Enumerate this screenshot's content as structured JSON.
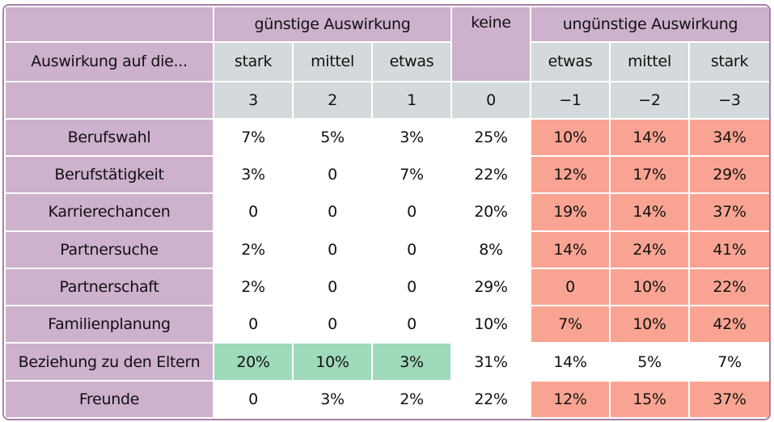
{
  "header": {
    "group_positive": "günstige Auswirkung",
    "group_none": "keine",
    "group_negative": "ungünstige Auswirkung",
    "row_label": "Auswirkung auf die...",
    "levels": [
      "stark",
      "mittel",
      "etwas",
      "etwas",
      "mittel",
      "stark"
    ],
    "scores": [
      "3",
      "2",
      "1",
      "0",
      "−1",
      "−2",
      "−3"
    ]
  },
  "rows": [
    {
      "label": "Berufswahl",
      "values": [
        "7%",
        "5%",
        "3%",
        "25%",
        "10%",
        "14%",
        "34%"
      ],
      "highlights": [
        "white",
        "white",
        "white",
        "white",
        "red",
        "red",
        "red"
      ]
    },
    {
      "label": "Berufstätigkeit",
      "values": [
        "3%",
        "0",
        "7%",
        "22%",
        "12%",
        "17%",
        "29%"
      ],
      "highlights": [
        "white",
        "white",
        "white",
        "white",
        "red",
        "red",
        "red"
      ]
    },
    {
      "label": "Karrierechancen",
      "values": [
        "0",
        "0",
        "0",
        "20%",
        "19%",
        "14%",
        "37%"
      ],
      "highlights": [
        "white",
        "white",
        "white",
        "white",
        "red",
        "red",
        "red"
      ]
    },
    {
      "label": "Partnersuche",
      "values": [
        "2%",
        "0",
        "0",
        "8%",
        "14%",
        "24%",
        "41%"
      ],
      "highlights": [
        "white",
        "white",
        "white",
        "white",
        "red",
        "red",
        "red"
      ]
    },
    {
      "label": "Partnerschaft",
      "values": [
        "2%",
        "0",
        "0",
        "29%",
        "0",
        "10%",
        "22%"
      ],
      "highlights": [
        "white",
        "white",
        "white",
        "white",
        "red",
        "red",
        "red"
      ]
    },
    {
      "label": "Familienplanung",
      "values": [
        "0",
        "0",
        "0",
        "10%",
        "7%",
        "10%",
        "42%"
      ],
      "highlights": [
        "white",
        "white",
        "white",
        "white",
        "red",
        "red",
        "red"
      ]
    },
    {
      "label": "Beziehung zu den Eltern",
      "values": [
        "20%",
        "10%",
        "3%",
        "31%",
        "14%",
        "5%",
        "7%"
      ],
      "highlights": [
        "green",
        "green",
        "green",
        "white",
        "white",
        "white",
        "white"
      ]
    },
    {
      "label": "Freunde",
      "values": [
        "0",
        "3%",
        "2%",
        "22%",
        "12%",
        "15%",
        "37%"
      ],
      "highlights": [
        "white",
        "white",
        "white",
        "white",
        "red",
        "red",
        "red"
      ]
    }
  ],
  "colors": {
    "header_purple": "#ceb1cd",
    "header_grey": "#d4dadc",
    "negative_highlight": "#f9a492",
    "positive_highlight": "#9fdabb",
    "border": "#a980a8"
  }
}
